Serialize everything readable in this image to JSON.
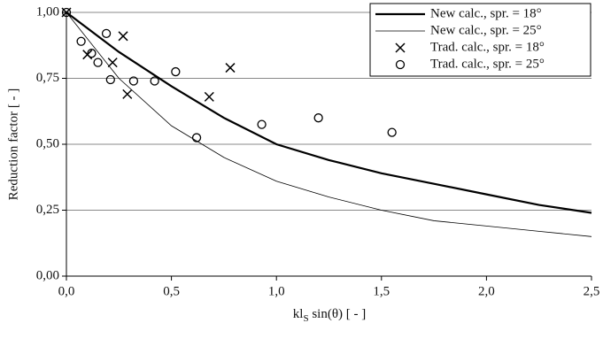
{
  "chart_data": {
    "type": "line",
    "xlabel": [
      "kl",
      "S",
      " sin(θ) [ - ]"
    ],
    "ylabel": "Reduction factor [ - ]",
    "xlim": [
      0,
      2.5
    ],
    "xticks": [
      {
        "value": 0,
        "label": "0,0"
      },
      {
        "value": 0.5,
        "label": "0,5"
      },
      {
        "value": 1,
        "label": "1,0"
      },
      {
        "value": 1.5,
        "label": "1,5"
      },
      {
        "value": 2,
        "label": "2,0"
      },
      {
        "value": 2.5,
        "label": "2,5"
      }
    ],
    "ylim": [
      0,
      1
    ],
    "yticks": [
      {
        "value": 0,
        "label": "0,00"
      },
      {
        "value": 0.25,
        "label": "0,25"
      },
      {
        "value": 0.5,
        "label": "0,50"
      },
      {
        "value": 0.75,
        "label": "0,75"
      },
      {
        "value": 1,
        "label": "1,00"
      }
    ],
    "grid": true,
    "legend": "top-right",
    "series": [
      {
        "name": "New calc., spr. = 18°",
        "color": "#000000",
        "style": "line",
        "width": 2.2,
        "x": [
          0,
          0.25,
          0.5,
          0.75,
          1.0,
          1.25,
          1.5,
          1.75,
          2.0,
          2.25,
          2.5
        ],
        "values": [
          1.0,
          0.85,
          0.72,
          0.6,
          0.5,
          0.44,
          0.39,
          0.35,
          0.31,
          0.27,
          0.24
        ]
      },
      {
        "name": "New calc., spr. = 25°",
        "color": "#000000",
        "style": "line",
        "width": 0.8,
        "x": [
          0,
          0.25,
          0.5,
          0.75,
          1.0,
          1.25,
          1.5,
          1.75,
          2.0,
          2.25,
          2.5
        ],
        "values": [
          1.0,
          0.75,
          0.57,
          0.45,
          0.36,
          0.3,
          0.25,
          0.21,
          0.19,
          0.17,
          0.15
        ]
      },
      {
        "name": "Trad. calc., spr. = 18°",
        "color": "#000000",
        "style": "x",
        "x": [
          0.0,
          0.1,
          0.22,
          0.27,
          0.29,
          0.68,
          0.78
        ],
        "values": [
          1.0,
          0.84,
          0.81,
          0.91,
          0.69,
          0.68,
          0.79
        ]
      },
      {
        "name": "Trad. calc., spr. = 25°",
        "color": "#000000",
        "style": "o",
        "x": [
          0.0,
          0.07,
          0.12,
          0.15,
          0.19,
          0.21,
          0.32,
          0.42,
          0.52,
          0.62,
          0.93,
          1.2,
          1.55
        ],
        "values": [
          1.0,
          0.89,
          0.845,
          0.81,
          0.92,
          0.745,
          0.74,
          0.74,
          0.775,
          0.525,
          0.575,
          0.6,
          0.545
        ]
      }
    ]
  }
}
